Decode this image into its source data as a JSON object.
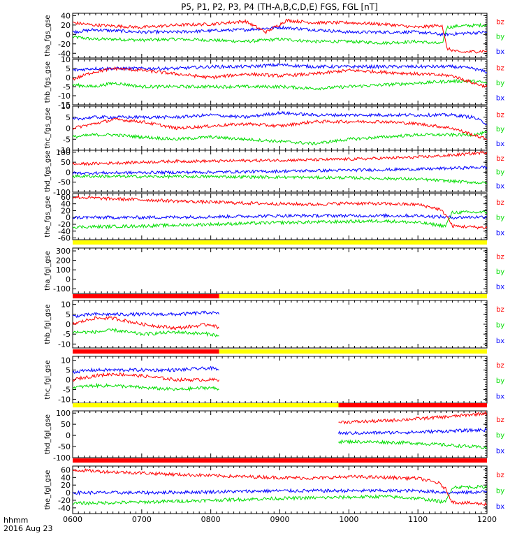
{
  "title": "P5, P1, P2, P3, P4 (TH-A,B,C,D,E) FGS, FGL [nT]",
  "footer": {
    "label": "hhmm",
    "date": "2016 Aug 23"
  },
  "colors": {
    "bz": "#ff0000",
    "by": "#00dd00",
    "bx": "#0000ff",
    "flag_yellow": "#ffff00",
    "flag_red": "#ff0000"
  },
  "chart_data": {
    "type": "line",
    "x_ticks": [
      "0600",
      "0700",
      "0800",
      "0900",
      "1000",
      "1100",
      "1200"
    ],
    "x_range": [
      "06:00",
      "12:00"
    ],
    "panels": [
      {
        "ylabel": "tha_fgs_gse",
        "yticks": [
          40,
          20,
          0,
          -20,
          -40
        ],
        "ylim": [
          -50,
          45
        ],
        "legend": [
          "bz",
          "by",
          "bx"
        ],
        "series": [
          {
            "name": "bz",
            "x": [
              6.0,
              6.3,
              6.6,
              7.0,
              7.5,
              8.0,
              8.5,
              8.8,
              9.1,
              9.5,
              10.0,
              10.5,
              11.0,
              11.35,
              11.42,
              11.6,
              12.0
            ],
            "y": [
              25,
              20,
              18,
              15,
              20,
              22,
              28,
              5,
              30,
              25,
              25,
              22,
              15,
              20,
              -30,
              -38,
              -35
            ]
          },
          {
            "name": "by",
            "x": [
              6.0,
              6.3,
              6.6,
              7.0,
              7.5,
              8.0,
              8.5,
              9.0,
              9.5,
              10.0,
              10.5,
              11.0,
              11.35,
              11.42,
              11.6,
              12.0
            ],
            "y": [
              -5,
              -10,
              -10,
              -12,
              -10,
              -12,
              -15,
              -10,
              -15,
              -15,
              -18,
              -15,
              -20,
              15,
              18,
              20
            ]
          },
          {
            "name": "bx",
            "x": [
              6.0,
              6.3,
              6.6,
              7.0,
              7.5,
              8.0,
              8.5,
              9.0,
              9.5,
              10.0,
              10.5,
              11.0,
              11.35,
              11.42,
              11.6,
              12.0
            ],
            "y": [
              5,
              10,
              8,
              5,
              5,
              8,
              10,
              15,
              10,
              5,
              5,
              5,
              0,
              0,
              2,
              5
            ]
          }
        ]
      },
      {
        "ylabel": "thb_fgs_gse",
        "yticks": [
          10,
          5,
          0,
          -5,
          -10,
          -15
        ],
        "ylim": [
          -15,
          10
        ],
        "legend": [
          "bz",
          "by",
          "bx"
        ],
        "series": [
          {
            "name": "bz",
            "x": [
              6.0,
              6.3,
              6.6,
              7.0,
              7.5,
              8.0,
              8.5,
              9.0,
              9.5,
              10.0,
              10.5,
              11.0,
              11.5,
              11.8,
              12.0
            ],
            "y": [
              -1,
              3,
              5,
              4,
              2,
              0,
              2,
              1,
              2,
              4,
              3,
              2,
              1,
              -3,
              -5
            ]
          },
          {
            "name": "by",
            "x": [
              6.0,
              6.3,
              6.6,
              7.0,
              7.5,
              8.0,
              8.5,
              9.0,
              9.5,
              10.0,
              10.5,
              11.0,
              11.5,
              11.8,
              12.0
            ],
            "y": [
              -4,
              -5,
              -3,
              -5,
              -5,
              -5,
              -5,
              -5,
              -6,
              -5,
              -4,
              -3,
              -2,
              -2,
              -3
            ]
          },
          {
            "name": "bx",
            "x": [
              6.0,
              6.3,
              6.6,
              7.0,
              7.5,
              8.0,
              8.5,
              9.0,
              9.5,
              10.0,
              10.5,
              11.0,
              11.5,
              11.8,
              12.0
            ],
            "y": [
              4,
              5,
              5,
              5,
              5,
              6,
              6,
              7,
              6,
              6,
              6,
              6,
              6,
              5,
              3
            ]
          }
        ]
      },
      {
        "ylabel": "thc_fgs_gse",
        "yticks": [
          10,
          5,
          0,
          -5,
          -10
        ],
        "ylim": [
          -10,
          10
        ],
        "legend": [
          "bz",
          "by",
          "bx"
        ],
        "series": [
          {
            "name": "bz",
            "x": [
              6.0,
              6.3,
              6.6,
              7.0,
              7.5,
              8.0,
              8.5,
              9.0,
              9.5,
              10.0,
              10.5,
              11.0,
              11.5,
              11.8,
              12.0
            ],
            "y": [
              0,
              2,
              4,
              3,
              0,
              1,
              2,
              1,
              3,
              3,
              3,
              2,
              0,
              -3,
              -5
            ]
          },
          {
            "name": "by",
            "x": [
              6.0,
              6.3,
              6.6,
              7.0,
              7.5,
              8.0,
              8.5,
              9.0,
              9.5,
              10.0,
              10.5,
              11.0,
              11.5,
              11.8,
              12.0
            ],
            "y": [
              -4,
              -3,
              -3,
              -4,
              -5,
              -4,
              -5,
              -6,
              -7,
              -5,
              -4,
              -3,
              -3,
              -3,
              -2
            ]
          },
          {
            "name": "bx",
            "x": [
              6.0,
              6.3,
              6.6,
              7.0,
              7.5,
              8.0,
              8.5,
              9.0,
              9.5,
              10.0,
              10.5,
              11.0,
              11.5,
              11.8,
              12.0
            ],
            "y": [
              4,
              5,
              5,
              5,
              5,
              6,
              5,
              7,
              6,
              6,
              6,
              6,
              6,
              5,
              2
            ]
          }
        ]
      },
      {
        "ylabel": "thd_fgs_gse",
        "yticks": [
          100,
          50,
          0,
          -50,
          -100
        ],
        "ylim": [
          -100,
          110
        ],
        "legend": [
          "bz",
          "by",
          "bx"
        ],
        "series": [
          {
            "name": "bz",
            "x": [
              6.0,
              6.5,
              7.0,
              7.5,
              8.0,
              8.5,
              9.0,
              9.5,
              10.0,
              10.5,
              11.0,
              11.5,
              12.0
            ],
            "y": [
              40,
              45,
              50,
              55,
              55,
              58,
              60,
              62,
              65,
              70,
              75,
              85,
              100
            ]
          },
          {
            "name": "by",
            "x": [
              6.0,
              7.0,
              8.0,
              9.0,
              10.0,
              11.0,
              12.0
            ],
            "y": [
              -20,
              -22,
              -22,
              -25,
              -28,
              -35,
              -55
            ]
          },
          {
            "name": "bx",
            "x": [
              6.0,
              7.0,
              8.0,
              9.0,
              10.0,
              11.0,
              11.5,
              12.0
            ],
            "y": [
              -5,
              -2,
              0,
              5,
              10,
              15,
              20,
              25
            ]
          }
        ]
      },
      {
        "ylabel": "the_fgs_gse",
        "yticks": [
          60,
          40,
          20,
          0,
          -20,
          -40,
          -60
        ],
        "ylim": [
          -65,
          70
        ],
        "legend": [
          "bz",
          "by",
          "bx"
        ],
        "series": [
          {
            "name": "bz",
            "x": [
              6.0,
              6.5,
              7.0,
              7.5,
              8.0,
              8.5,
              9.0,
              9.5,
              10.0,
              10.5,
              11.0,
              11.3,
              11.4,
              11.5,
              12.0
            ],
            "y": [
              60,
              55,
              52,
              48,
              45,
              42,
              40,
              38,
              42,
              40,
              38,
              25,
              10,
              -25,
              -30
            ]
          },
          {
            "name": "by",
            "x": [
              6.0,
              7.0,
              8.0,
              9.0,
              10.0,
              10.5,
              11.0,
              11.4,
              11.5,
              12.0
            ],
            "y": [
              -28,
              -25,
              -20,
              -15,
              -12,
              -10,
              -15,
              -25,
              15,
              15
            ]
          },
          {
            "name": "bx",
            "x": [
              6.0,
              7.0,
              8.0,
              9.0,
              10.0,
              11.0,
              11.5,
              12.0
            ],
            "y": [
              0,
              0,
              2,
              5,
              5,
              5,
              0,
              2
            ]
          }
        ]
      },
      {
        "ylabel": "tha_fgl_gse",
        "yticks": [
          300,
          200,
          100,
          0,
          -100
        ],
        "ylim": [
          -150,
          330
        ],
        "legend": [
          "bz",
          "by",
          "bx"
        ],
        "series": []
      },
      {
        "ylabel": "thb_fgl_gse",
        "yticks": [
          10,
          5,
          0,
          -5,
          -10
        ],
        "ylim": [
          -12,
          12
        ],
        "legend": [
          "bz",
          "by",
          "bx"
        ],
        "series": [
          {
            "name": "bz",
            "x": [
              6.0,
              6.3,
              6.6,
              7.0,
              7.5,
              8.0,
              8.12
            ],
            "y": [
              0,
              3,
              3,
              0,
              -2,
              0,
              -2
            ]
          },
          {
            "name": "by",
            "x": [
              6.0,
              6.3,
              6.6,
              7.0,
              7.5,
              8.0,
              8.12
            ],
            "y": [
              -4,
              -4,
              -3,
              -5,
              -4,
              -5,
              -6
            ]
          },
          {
            "name": "bx",
            "x": [
              6.0,
              6.3,
              6.6,
              7.0,
              7.5,
              8.0,
              8.12
            ],
            "y": [
              4,
              5,
              5,
              5,
              5,
              6,
              5
            ]
          }
        ]
      },
      {
        "ylabel": "thc_fgl_gse",
        "yticks": [
          10,
          5,
          0,
          -5,
          -10
        ],
        "ylim": [
          -12,
          12
        ],
        "legend": [
          "bz",
          "by",
          "bx"
        ],
        "series": [
          {
            "name": "bz",
            "x": [
              6.0,
              6.3,
              6.6,
              7.0,
              7.5,
              8.0,
              8.12
            ],
            "y": [
              0,
              2,
              3,
              2,
              0,
              0,
              0
            ]
          },
          {
            "name": "by",
            "x": [
              6.0,
              6.3,
              6.6,
              7.0,
              7.5,
              8.0,
              8.12
            ],
            "y": [
              -4,
              -3,
              -3,
              -4,
              -5,
              -4,
              -5
            ]
          },
          {
            "name": "bx",
            "x": [
              6.0,
              6.3,
              6.6,
              7.0,
              7.5,
              8.0,
              8.12
            ],
            "y": [
              4,
              5,
              5,
              5,
              5,
              6,
              5
            ]
          }
        ]
      },
      {
        "ylabel": "thd_fgl_gse",
        "yticks": [
          100,
          50,
          0,
          -50,
          -100
        ],
        "ylim": [
          -100,
          110
        ],
        "legend": [
          "bz",
          "by",
          "bx"
        ],
        "series": [
          {
            "name": "bz",
            "x": [
              9.85,
              10.0,
              10.5,
              11.0,
              11.5,
              12.0
            ],
            "y": [
              60,
              60,
              65,
              75,
              85,
              100
            ]
          },
          {
            "name": "by",
            "x": [
              9.85,
              10.0,
              10.5,
              11.0,
              11.5,
              12.0
            ],
            "y": [
              -28,
              -28,
              -30,
              -35,
              -45,
              -55
            ]
          },
          {
            "name": "bx",
            "x": [
              9.85,
              10.0,
              10.5,
              11.0,
              11.5,
              12.0
            ],
            "y": [
              10,
              10,
              12,
              15,
              20,
              25
            ]
          }
        ]
      },
      {
        "ylabel": "the_fgl_gse",
        "yticks": [
          60,
          40,
          20,
          0,
          -20,
          -40
        ],
        "ylim": [
          -55,
          70
        ],
        "legend": [
          "bz",
          "by",
          "bx"
        ],
        "series": [
          {
            "name": "bz",
            "x": [
              6.0,
              6.5,
              7.0,
              7.5,
              8.0,
              8.5,
              9.0,
              9.5,
              10.0,
              10.5,
              11.0,
              11.3,
              11.4,
              11.5,
              12.0
            ],
            "y": [
              60,
              55,
              52,
              48,
              45,
              42,
              40,
              38,
              42,
              40,
              38,
              25,
              10,
              -25,
              -30
            ]
          },
          {
            "name": "by",
            "x": [
              6.0,
              7.0,
              8.0,
              9.0,
              10.0,
              10.5,
              11.0,
              11.4,
              11.5,
              12.0
            ],
            "y": [
              -28,
              -25,
              -20,
              -15,
              -12,
              -10,
              -15,
              -25,
              15,
              15
            ]
          },
          {
            "name": "bx",
            "x": [
              6.0,
              7.0,
              8.0,
              9.0,
              10.0,
              11.0,
              11.5,
              12.0
            ],
            "y": [
              0,
              0,
              2,
              5,
              5,
              5,
              0,
              2
            ]
          }
        ]
      }
    ],
    "flag_bars": [
      {
        "segments": [
          {
            "color": "yellow",
            "from": 6.0,
            "to": 12.0
          }
        ]
      },
      {
        "segments": [
          {
            "color": "red",
            "from": 6.0,
            "to": 8.12
          },
          {
            "color": "yellow",
            "from": 8.12,
            "to": 12.0
          }
        ]
      },
      {
        "segments": [
          {
            "color": "red",
            "from": 6.0,
            "to": 8.12
          },
          {
            "color": "yellow",
            "from": 8.12,
            "to": 12.0
          }
        ]
      },
      {
        "segments": [
          {
            "color": "yellow",
            "from": 6.0,
            "to": 9.85
          },
          {
            "color": "red",
            "from": 9.85,
            "to": 12.0
          }
        ]
      },
      {
        "segments": [
          {
            "color": "red",
            "from": 6.0,
            "to": 12.0
          }
        ]
      }
    ]
  }
}
